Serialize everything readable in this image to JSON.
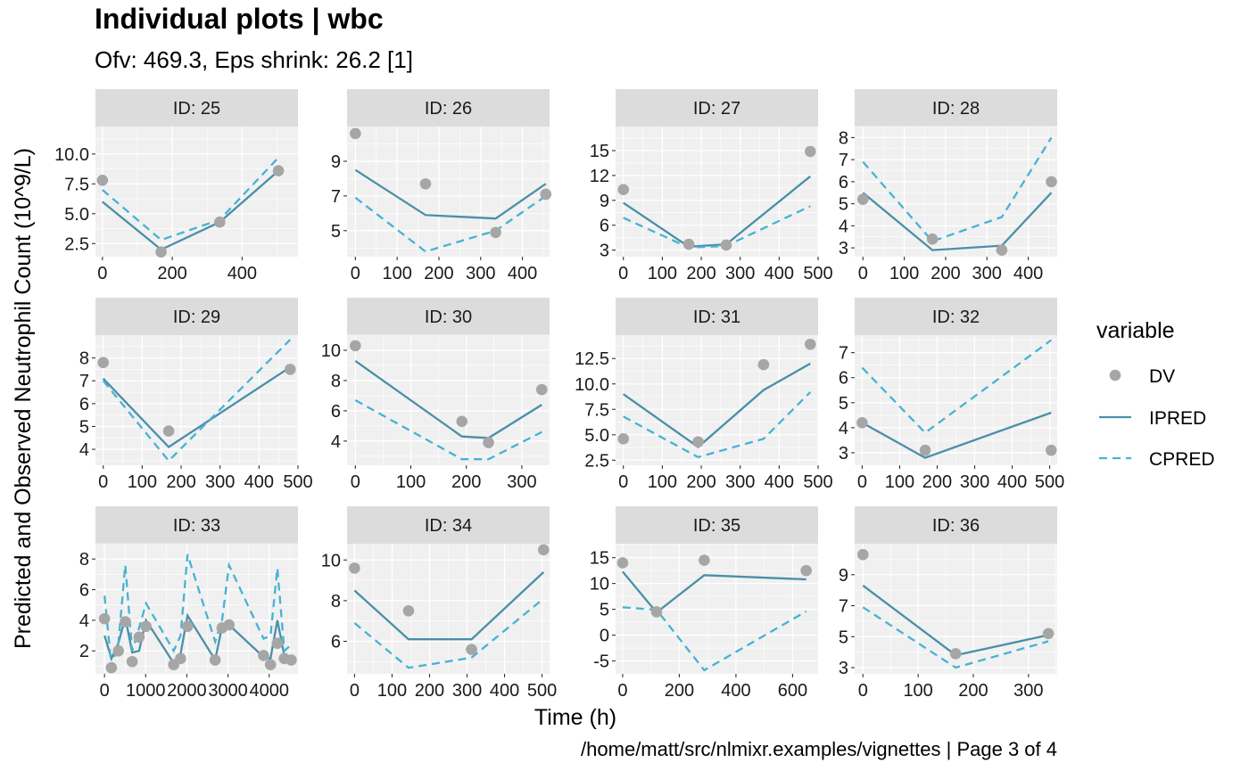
{
  "title": "Individual plots | wbc",
  "subtitle": "Ofv: 469.3, Eps shrink: 26.2 [1]",
  "caption": "/home/matt/src/nlmixr.examples/vignettes | Page 3 of 4",
  "colors": {
    "dv": "#a6a6a6",
    "ipred": "#4a8fa8",
    "cpred": "#46b2d4",
    "panel_bg": "#f0f0f0",
    "strip_bg": "#dcdcdc",
    "grid": "#ffffff"
  },
  "chart_data": {
    "type": "line",
    "xlabel": "Time (h)",
    "ylabel": "Predicted and Observed Neutrophil Count (10^9/L)",
    "legend": {
      "title": "variable",
      "position": "right",
      "entries": [
        "DV",
        "IPRED",
        "CPRED"
      ]
    },
    "grid": true,
    "panels": [
      {
        "strip": "ID: 25",
        "xlim": [
          -20,
          560
        ],
        "ylim": [
          1.4,
          12.3
        ],
        "xticks": [
          0,
          200,
          400
        ],
        "xtick_labels": [
          "0",
          "200",
          "400"
        ],
        "yticks": [
          2.5,
          5.0,
          7.5,
          10.0
        ],
        "ytick_labels": [
          "2.5",
          "5.0",
          "7.5",
          "10.0"
        ],
        "x": [
          0,
          168,
          336,
          504
        ],
        "DV": [
          7.8,
          1.8,
          4.3,
          8.6
        ],
        "IPRED": [
          6.0,
          2.0,
          4.3,
          8.6
        ],
        "CPRED": [
          7.0,
          2.8,
          4.5,
          9.7
        ]
      },
      {
        "strip": "ID: 26",
        "xlim": [
          -20,
          465
        ],
        "ylim": [
          3.5,
          11.0
        ],
        "xticks": [
          0,
          100,
          200,
          300,
          400
        ],
        "xtick_labels": [
          "0",
          "100",
          "200",
          "300",
          "400"
        ],
        "yticks": [
          5,
          7,
          9
        ],
        "ytick_labels": [
          "5",
          "7",
          "9"
        ],
        "x": [
          0,
          168,
          336,
          456
        ],
        "DV": [
          10.6,
          7.7,
          4.9,
          7.1
        ],
        "IPRED": [
          8.5,
          5.9,
          5.7,
          7.7
        ],
        "CPRED": [
          6.9,
          3.8,
          5.0,
          7.0
        ]
      },
      {
        "strip": "ID: 27",
        "xlim": [
          -20,
          500
        ],
        "ylim": [
          2.2,
          17.9
        ],
        "xticks": [
          0,
          100,
          200,
          300,
          400,
          500
        ],
        "xtick_labels": [
          "0",
          "100",
          "200",
          "300",
          "400",
          "500"
        ],
        "yticks": [
          3,
          6,
          9,
          12,
          15
        ],
        "ytick_labels": [
          "3",
          "6",
          "9",
          "12",
          "15"
        ],
        "x": [
          0,
          168,
          264,
          480
        ],
        "DV": [
          10.3,
          3.7,
          3.6,
          14.9
        ],
        "IPRED": [
          8.7,
          3.4,
          3.7,
          11.9
        ],
        "CPRED": [
          6.9,
          3.3,
          3.5,
          8.3
        ]
      },
      {
        "strip": "ID: 28",
        "xlim": [
          -20,
          470
        ],
        "ylim": [
          2.6,
          8.5
        ],
        "xticks": [
          0,
          100,
          200,
          300,
          400
        ],
        "xtick_labels": [
          "0",
          "100",
          "200",
          "300",
          "400"
        ],
        "yticks": [
          3,
          4,
          5,
          6,
          7,
          8
        ],
        "ytick_labels": [
          "3",
          "4",
          "5",
          "6",
          "7",
          "8"
        ],
        "x": [
          0,
          168,
          336,
          456
        ],
        "DV": [
          5.2,
          3.4,
          2.9,
          6.0
        ],
        "IPRED": [
          5.5,
          2.9,
          3.1,
          5.5
        ],
        "CPRED": [
          6.9,
          3.3,
          4.4,
          8.0
        ]
      },
      {
        "strip": "ID: 29",
        "xlim": [
          -20,
          500
        ],
        "ylim": [
          3.3,
          9.0
        ],
        "xticks": [
          0,
          100,
          200,
          300,
          400,
          500
        ],
        "xtick_labels": [
          "0",
          "100",
          "200",
          "300",
          "400",
          "500"
        ],
        "yticks": [
          4,
          5,
          6,
          7,
          8
        ],
        "ytick_labels": [
          "4",
          "5",
          "6",
          "7",
          "8"
        ],
        "x": [
          0,
          168,
          480
        ],
        "DV": [
          7.8,
          4.8,
          7.5
        ],
        "IPRED": [
          7.1,
          4.1,
          7.6
        ],
        "CPRED": [
          7.0,
          3.5,
          8.8
        ]
      },
      {
        "strip": "ID: 30",
        "xlim": [
          -15,
          350
        ],
        "ylim": [
          2.4,
          11.0
        ],
        "xticks": [
          0,
          100,
          200,
          300
        ],
        "xtick_labels": [
          "0",
          "100",
          "200",
          "300"
        ],
        "yticks": [
          4,
          6,
          8,
          10
        ],
        "ytick_labels": [
          "4",
          "6",
          "8",
          "10"
        ],
        "x": [
          0,
          192,
          240,
          336
        ],
        "DV": [
          10.3,
          5.3,
          3.9,
          7.4
        ],
        "IPRED": [
          9.3,
          4.3,
          4.2,
          6.4
        ],
        "CPRED": [
          6.7,
          2.8,
          2.8,
          4.6
        ]
      },
      {
        "strip": "ID: 31",
        "xlim": [
          -20,
          500
        ],
        "ylim": [
          2.0,
          14.8
        ],
        "xticks": [
          0,
          100,
          200,
          300,
          400,
          500
        ],
        "xtick_labels": [
          "0",
          "100",
          "200",
          "300",
          "400",
          "500"
        ],
        "yticks": [
          2.5,
          5.0,
          7.5,
          10.0,
          12.5
        ],
        "ytick_labels": [
          "2.5",
          "5.0",
          "7.5",
          "10.0",
          "12.5"
        ],
        "x": [
          0,
          192,
          360,
          480
        ],
        "DV": [
          4.6,
          4.3,
          11.9,
          13.9
        ],
        "IPRED": [
          9.0,
          3.8,
          9.4,
          12.0
        ],
        "CPRED": [
          6.8,
          2.8,
          4.6,
          9.2
        ]
      },
      {
        "strip": "ID: 32",
        "xlim": [
          -20,
          520
        ],
        "ylim": [
          2.5,
          7.7
        ],
        "xticks": [
          0,
          100,
          200,
          300,
          400,
          500
        ],
        "xtick_labels": [
          "0",
          "100",
          "200",
          "300",
          "400",
          "500"
        ],
        "yticks": [
          3,
          4,
          5,
          6,
          7
        ],
        "ytick_labels": [
          "3",
          "4",
          "5",
          "6",
          "7"
        ],
        "x": [
          0,
          168,
          504
        ],
        "DV": [
          4.2,
          3.1,
          3.1
        ],
        "IPRED": [
          4.2,
          2.8,
          4.6
        ],
        "CPRED": [
          6.4,
          3.8,
          7.5
        ]
      },
      {
        "strip": "ID: 33",
        "xlim": [
          -220,
          4700
        ],
        "ylim": [
          0.5,
          9.0
        ],
        "xticks": [
          0,
          1000,
          2000,
          3000,
          4000
        ],
        "xtick_labels": [
          "0",
          "1000",
          "2000",
          "3000",
          "4000"
        ],
        "yticks": [
          2,
          4,
          6,
          8
        ],
        "ytick_labels": [
          "2",
          "4",
          "6",
          "8"
        ],
        "x": [
          0,
          168,
          336,
          504,
          672,
          840,
          1008,
          1680,
          1848,
          2016,
          2688,
          2856,
          3024,
          3864,
          4032,
          4200,
          4368,
          4536
        ],
        "DV": [
          4.1,
          0.9,
          2.0,
          3.9,
          1.3,
          2.9,
          3.6,
          1.1,
          1.5,
          3.6,
          1.4,
          3.5,
          3.7,
          1.7,
          1.1,
          2.5,
          1.5,
          1.4
        ],
        "IPRED": [
          3.0,
          1.5,
          2.5,
          4.2,
          1.9,
          2.0,
          4.0,
          1.2,
          1.8,
          4.3,
          1.4,
          3.6,
          3.7,
          1.6,
          1.5,
          4.0,
          1.7,
          1.4
        ],
        "CPRED": [
          5.6,
          1.0,
          2.5,
          7.6,
          2.0,
          3.5,
          5.1,
          2.0,
          3.0,
          8.3,
          2.6,
          4.0,
          7.6,
          2.8,
          3.0,
          7.4,
          2.0,
          2.4
        ]
      },
      {
        "strip": "ID: 34",
        "xlim": [
          -20,
          520
        ],
        "ylim": [
          4.4,
          10.8
        ],
        "xticks": [
          0,
          100,
          200,
          300,
          400,
          500
        ],
        "xtick_labels": [
          "0",
          "100",
          "200",
          "300",
          "400",
          "500"
        ],
        "yticks": [
          6,
          8,
          10
        ],
        "ytick_labels": [
          "6",
          "8",
          "10"
        ],
        "x": [
          0,
          144,
          312,
          504
        ],
        "DV": [
          9.6,
          7.5,
          5.6,
          10.5
        ],
        "IPRED": [
          8.5,
          6.1,
          6.1,
          9.4
        ],
        "CPRED": [
          6.9,
          4.7,
          5.2,
          8.1
        ]
      },
      {
        "strip": "ID: 35",
        "xlim": [
          -25,
          690
        ],
        "ylim": [
          -7.5,
          17.7
        ],
        "xticks": [
          0,
          200,
          400,
          600
        ],
        "xtick_labels": [
          "0",
          "200",
          "400",
          "600"
        ],
        "yticks": [
          -5,
          0,
          5,
          10,
          15
        ],
        "ytick_labels": [
          "-5",
          "0",
          "5",
          "10",
          "15"
        ],
        "x": [
          0,
          120,
          288,
          648
        ],
        "DV": [
          14.0,
          4.5,
          14.5,
          12.5
        ],
        "IPRED": [
          12.3,
          4.4,
          11.6,
          10.8
        ],
        "CPRED": [
          5.4,
          4.9,
          -6.8,
          4.6
        ]
      },
      {
        "strip": "ID: 36",
        "xlim": [
          -15,
          352
        ],
        "ylim": [
          2.6,
          11.0
        ],
        "xticks": [
          0,
          100,
          200,
          300
        ],
        "xtick_labels": [
          "0",
          "100",
          "200",
          "300"
        ],
        "yticks": [
          3,
          5,
          7,
          9
        ],
        "ytick_labels": [
          "3",
          "5",
          "7",
          "9"
        ],
        "x": [
          0,
          168,
          336
        ],
        "DV": [
          10.3,
          3.9,
          5.2
        ],
        "IPRED": [
          8.3,
          3.8,
          5.1
        ],
        "CPRED": [
          6.9,
          3.0,
          4.7
        ]
      }
    ]
  }
}
